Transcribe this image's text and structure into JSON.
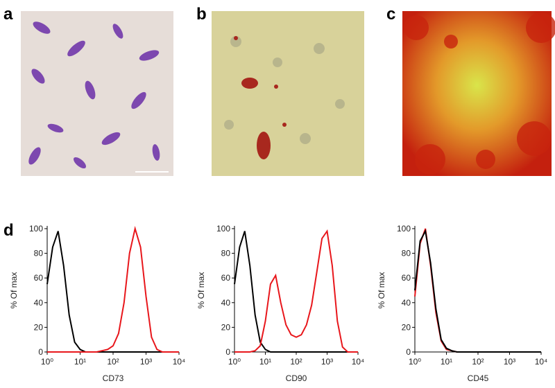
{
  "panels": [
    {
      "label": "a"
    },
    {
      "label": "b"
    },
    {
      "label": "c"
    },
    {
      "label": "d"
    }
  ],
  "chart_data": [
    {
      "type": "line",
      "xscale": "log",
      "xlabel": "CD73",
      "ylabel": "% Of max",
      "xlim": [
        1,
        10000
      ],
      "ylim": [
        0,
        100
      ],
      "xticks": [
        {
          "value": 1,
          "label": "10⁰"
        },
        {
          "value": 10,
          "label": "10¹"
        },
        {
          "value": 100,
          "label": "10²"
        },
        {
          "value": 1000,
          "label": "10³"
        },
        {
          "value": 10000,
          "label": "10⁴"
        }
      ],
      "yticks": [
        0,
        20,
        40,
        60,
        80,
        100
      ],
      "x": [
        1,
        1.468,
        2.154,
        3.162,
        4.642,
        6.813,
        10,
        14.68,
        21.54,
        31.62,
        46.42,
        68.13,
        100,
        146.8,
        215.4,
        316.2,
        464.2,
        681.3,
        1000,
        1468,
        2154,
        3162,
        4642,
        6813,
        10000
      ],
      "series": [
        {
          "color": "#000000",
          "values": [
            55,
            85,
            98,
            70,
            30,
            8,
            2,
            0,
            0,
            0,
            0,
            0,
            0,
            0,
            0,
            0,
            0,
            0,
            0,
            0,
            0,
            0,
            0,
            0,
            0
          ]
        },
        {
          "color": "#e8161b",
          "values": [
            0,
            0,
            0,
            0,
            0,
            0,
            0,
            0,
            0,
            0,
            1,
            2,
            5,
            15,
            40,
            80,
            100,
            85,
            45,
            12,
            2,
            0,
            0,
            0,
            0
          ]
        }
      ]
    },
    {
      "type": "line",
      "xscale": "log",
      "xlabel": "CD90",
      "ylabel": "% Of max",
      "xlim": [
        1,
        10000
      ],
      "ylim": [
        0,
        100
      ],
      "xticks": [
        {
          "value": 1,
          "label": "10⁰"
        },
        {
          "value": 10,
          "label": "10¹"
        },
        {
          "value": 100,
          "label": "10²"
        },
        {
          "value": 1000,
          "label": "10³"
        },
        {
          "value": 10000,
          "label": "10⁴"
        }
      ],
      "yticks": [
        0,
        20,
        40,
        60,
        80,
        100
      ],
      "x": [
        1,
        1.468,
        2.154,
        3.162,
        4.642,
        6.813,
        10,
        14.68,
        21.54,
        31.62,
        46.42,
        68.13,
        100,
        146.8,
        215.4,
        316.2,
        464.2,
        681.3,
        1000,
        1468,
        2154,
        3162,
        4642,
        6813,
        10000
      ],
      "series": [
        {
          "color": "#000000",
          "values": [
            55,
            85,
            98,
            70,
            30,
            8,
            2,
            0,
            0,
            0,
            0,
            0,
            0,
            0,
            0,
            0,
            0,
            0,
            0,
            0,
            0,
            0,
            0,
            0,
            0
          ]
        },
        {
          "color": "#e8161b",
          "values": [
            0,
            0,
            0,
            0,
            1,
            5,
            25,
            55,
            62,
            40,
            22,
            14,
            12,
            14,
            22,
            38,
            65,
            92,
            98,
            70,
            25,
            4,
            0,
            0,
            0
          ]
        }
      ]
    },
    {
      "type": "line",
      "xscale": "log",
      "xlabel": "CD45",
      "ylabel": "% Of max",
      "xlim": [
        1,
        10000
      ],
      "ylim": [
        0,
        100
      ],
      "xticks": [
        {
          "value": 1,
          "label": "10⁰"
        },
        {
          "value": 10,
          "label": "10¹"
        },
        {
          "value": 100,
          "label": "10²"
        },
        {
          "value": 1000,
          "label": "10³"
        },
        {
          "value": 10000,
          "label": "10⁴"
        }
      ],
      "yticks": [
        0,
        20,
        40,
        60,
        80,
        100
      ],
      "x": [
        1,
        1.468,
        2.154,
        3.162,
        4.642,
        6.813,
        10,
        14.68,
        21.54,
        31.62,
        46.42,
        68.13,
        100,
        146.8,
        215.4,
        316.2,
        464.2,
        681.3,
        1000,
        1468,
        2154,
        3162,
        4642,
        6813,
        10000
      ],
      "series": [
        {
          "color": "#e8161b",
          "values": [
            45,
            88,
            100,
            70,
            32,
            9,
            2,
            1,
            0,
            0,
            0,
            0,
            0,
            0,
            0,
            0,
            0,
            0,
            0,
            0,
            0,
            0,
            0,
            0,
            0
          ]
        },
        {
          "color": "#000000",
          "values": [
            50,
            90,
            98,
            72,
            35,
            10,
            3,
            1,
            0,
            0,
            0,
            0,
            0,
            0,
            0,
            0,
            0,
            0,
            0,
            0,
            0,
            0,
            0,
            0,
            0
          ]
        }
      ]
    }
  ]
}
